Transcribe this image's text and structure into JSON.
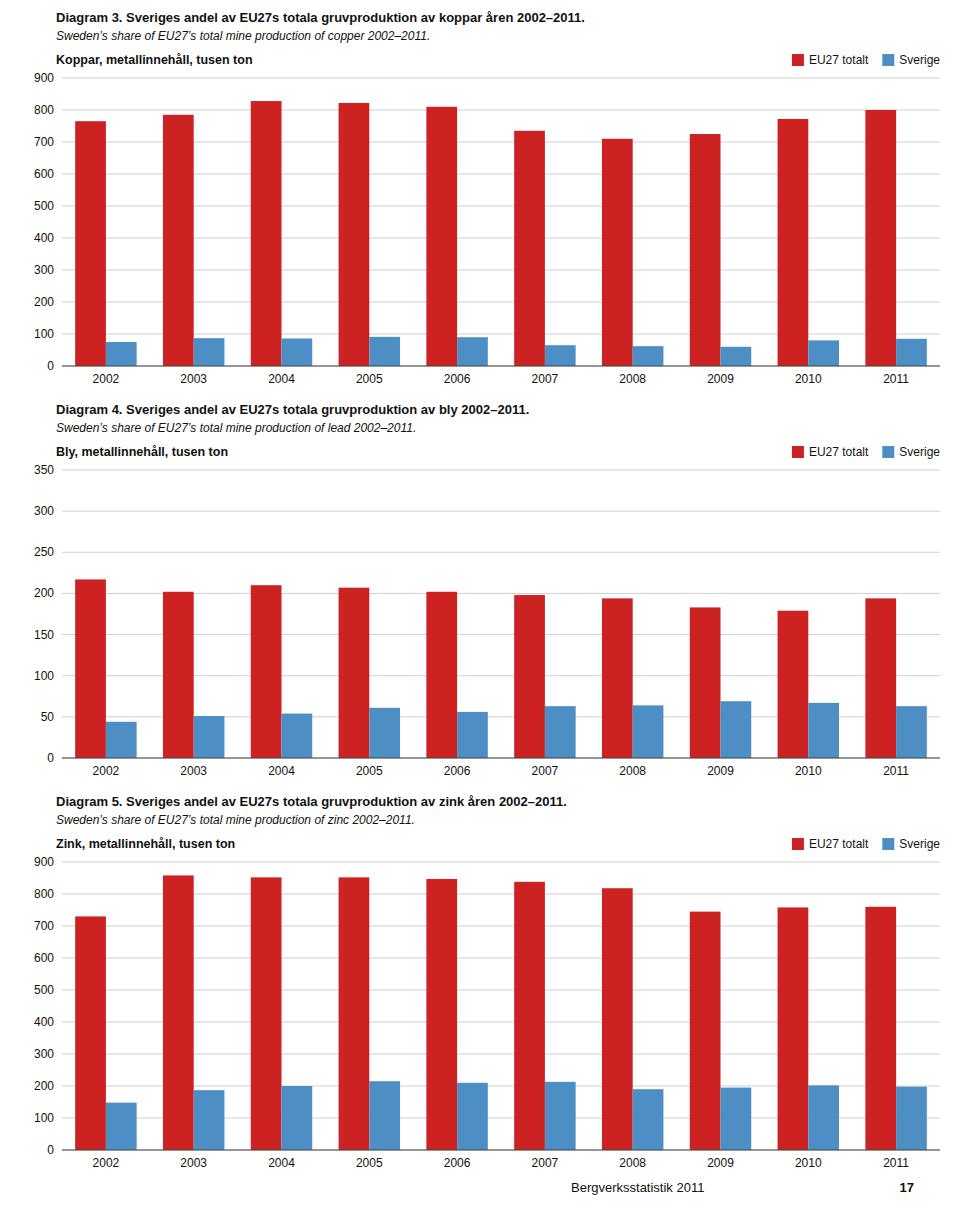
{
  "chart_data": [
    {
      "type": "bar",
      "title": "Diagram 3. Sveriges andel av EU27s totala gruvproduktion av koppar åren 2002–2011.",
      "subtitle": "Sweden’s share of EU27’s total mine production of copper 2002–2011.",
      "ylabel": "Koppar, metallinnehåll, tusen ton",
      "categories": [
        "2002",
        "2003",
        "2004",
        "2005",
        "2006",
        "2007",
        "2008",
        "2009",
        "2010",
        "2011"
      ],
      "series": [
        {
          "name": "EU27 totalt",
          "color": "#cc2222",
          "values": [
            765,
            785,
            828,
            822,
            810,
            735,
            710,
            725,
            772,
            800
          ]
        },
        {
          "name": "Sverige",
          "color": "#4d8fc4",
          "values": [
            75,
            87,
            86,
            91,
            90,
            65,
            62,
            60,
            80,
            85
          ]
        }
      ],
      "ylim": [
        0,
        900
      ],
      "yticks": [
        0,
        100,
        200,
        300,
        400,
        500,
        600,
        700,
        800,
        900
      ],
      "grid": true,
      "legend": "upper right"
    },
    {
      "type": "bar",
      "title": "Diagram 4. Sveriges andel av EU27s totala gruvproduktion av bly 2002–2011.",
      "subtitle": "Sweden’s share of EU27’s total mine production of lead 2002–2011.",
      "ylabel": "Bly, metallinnehåll, tusen ton",
      "categories": [
        "2002",
        "2003",
        "2004",
        "2005",
        "2006",
        "2007",
        "2008",
        "2009",
        "2010",
        "2011"
      ],
      "series": [
        {
          "name": "EU27 totalt",
          "color": "#cc2222",
          "values": [
            217,
            202,
            210,
            207,
            202,
            198,
            194,
            183,
            179,
            194
          ]
        },
        {
          "name": "Sverige",
          "color": "#4d8fc4",
          "values": [
            44,
            51,
            54,
            61,
            56,
            63,
            64,
            69,
            67,
            63
          ]
        }
      ],
      "ylim": [
        0,
        350
      ],
      "yticks": [
        0,
        50,
        100,
        150,
        200,
        250,
        300,
        350
      ],
      "grid": true,
      "legend": "upper right"
    },
    {
      "type": "bar",
      "title": "Diagram 5. Sveriges andel av EU27s totala gruvproduktion av zink åren 2002–2011.",
      "subtitle": "Sweden’s share of EU27’s total mine production of zinc 2002–2011.",
      "ylabel": "Zink, metallinnehåll, tusen ton",
      "categories": [
        "2002",
        "2003",
        "2004",
        "2005",
        "2006",
        "2007",
        "2008",
        "2009",
        "2010",
        "2011"
      ],
      "series": [
        {
          "name": "EU27 totalt",
          "color": "#cc2222",
          "values": [
            730,
            858,
            852,
            852,
            847,
            838,
            818,
            745,
            758,
            760
          ]
        },
        {
          "name": "Sverige",
          "color": "#4d8fc4",
          "values": [
            148,
            187,
            200,
            215,
            210,
            213,
            190,
            195,
            202,
            198
          ]
        }
      ],
      "ylim": [
        0,
        900
      ],
      "yticks": [
        0,
        100,
        200,
        300,
        400,
        500,
        600,
        700,
        800,
        900
      ],
      "grid": true,
      "legend": "upper right",
      "annotations": [
        "Bergverksstatistik 2011",
        "17"
      ]
    }
  ]
}
